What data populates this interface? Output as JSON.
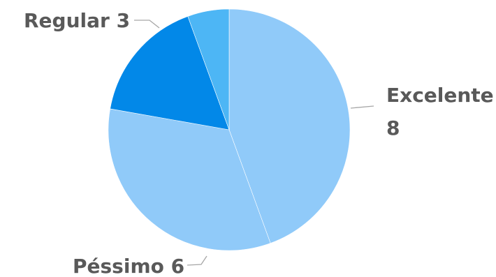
{
  "chart_data": {
    "type": "pie",
    "title": "",
    "categories": [
      "Excelente",
      "Péssimo",
      "Regular",
      ""
    ],
    "values": [
      8,
      6,
      3,
      1
    ],
    "colors": [
      "#90caf9",
      "#90caf9",
      "#0288e8",
      "#4db6f5"
    ],
    "labels": [
      {
        "name": "Excelente",
        "value": "8"
      },
      {
        "name": "Péssimo",
        "value": "6"
      },
      {
        "name": "Regular",
        "value": "3"
      }
    ],
    "legend": "none"
  }
}
